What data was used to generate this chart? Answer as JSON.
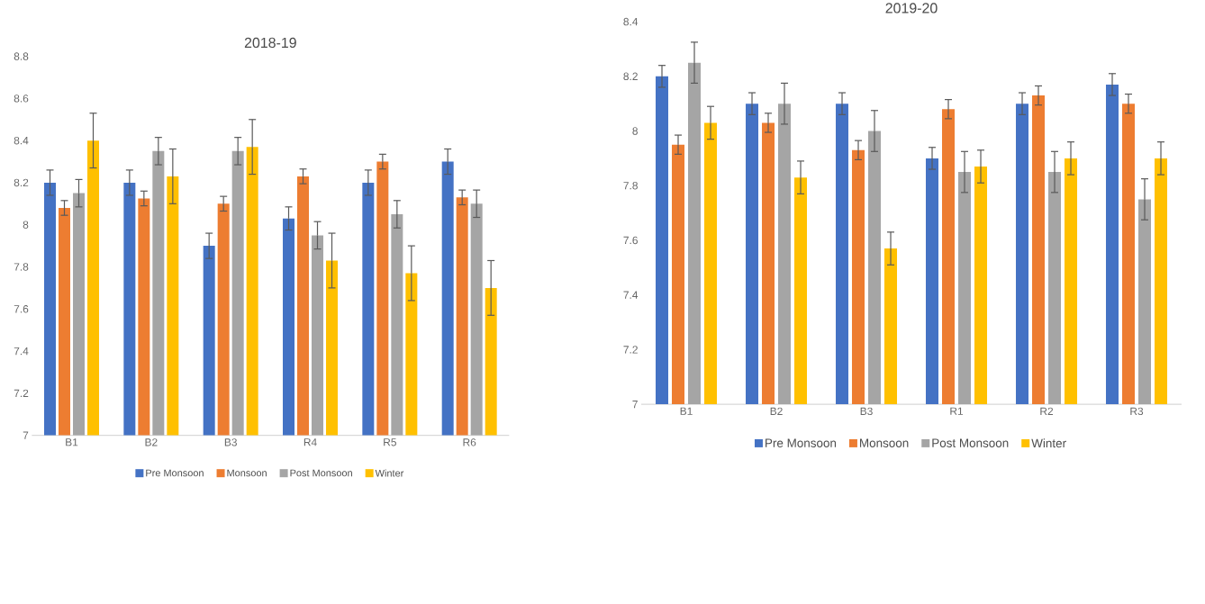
{
  "chart_data": [
    {
      "type": "bar",
      "title": "2018-19",
      "categories": [
        "B1",
        "B2",
        "B3",
        "R4",
        "R5",
        "R6"
      ],
      "ylim": [
        7,
        8.8
      ],
      "yticks": [
        7,
        7.2,
        7.4,
        7.6,
        7.8,
        8,
        8.2,
        8.4,
        8.6,
        8.8
      ],
      "legend": "bottom",
      "series": [
        {
          "name": "Pre Monsoon",
          "color": "#4472c4",
          "values": [
            8.2,
            8.2,
            7.9,
            8.03,
            8.2,
            8.3
          ],
          "errors": [
            0.06,
            0.06,
            0.06,
            0.055,
            0.06,
            0.06
          ]
        },
        {
          "name": "Monsoon",
          "color": "#ed7d31",
          "values": [
            8.08,
            8.125,
            8.1,
            8.23,
            8.3,
            8.13
          ],
          "errors": [
            0.035,
            0.035,
            0.035,
            0.035,
            0.035,
            0.035
          ]
        },
        {
          "name": "Post Monsoon",
          "color": "#a5a5a5",
          "values": [
            8.15,
            8.35,
            8.35,
            7.95,
            8.05,
            8.1
          ],
          "errors": [
            0.065,
            0.065,
            0.065,
            0.065,
            0.065,
            0.065
          ]
        },
        {
          "name": "Winter",
          "color": "#ffc000",
          "values": [
            8.4,
            8.23,
            8.37,
            7.83,
            7.77,
            7.7
          ],
          "errors": [
            0.13,
            0.13,
            0.13,
            0.13,
            0.13,
            0.13
          ]
        }
      ]
    },
    {
      "type": "bar",
      "title": "2019-20",
      "categories": [
        "B1",
        "B2",
        "B3",
        "R1",
        "R2",
        "R3"
      ],
      "ylim": [
        7,
        8.4
      ],
      "yticks": [
        7,
        7.2,
        7.4,
        7.6,
        7.8,
        8,
        8.2,
        8.4
      ],
      "legend": "bottom",
      "series": [
        {
          "name": "Pre Monsoon",
          "color": "#4472c4",
          "values": [
            8.2,
            8.1,
            8.1,
            7.9,
            8.1,
            8.17
          ],
          "errors": [
            0.04,
            0.04,
            0.04,
            0.04,
            0.04,
            0.04
          ]
        },
        {
          "name": "Monsoon",
          "color": "#ed7d31",
          "values": [
            7.95,
            8.03,
            7.93,
            8.08,
            8.13,
            8.1
          ],
          "errors": [
            0.035,
            0.035,
            0.035,
            0.035,
            0.035,
            0.035
          ]
        },
        {
          "name": "Post Monsoon",
          "color": "#a5a5a5",
          "values": [
            8.25,
            8.1,
            8.0,
            7.85,
            7.85,
            7.75
          ],
          "errors": [
            0.075,
            0.075,
            0.075,
            0.075,
            0.075,
            0.075
          ]
        },
        {
          "name": "Winter",
          "color": "#ffc000",
          "values": [
            8.03,
            7.83,
            7.57,
            7.87,
            7.9,
            7.9
          ],
          "errors": [
            0.06,
            0.06,
            0.06,
            0.06,
            0.06,
            0.06
          ]
        }
      ]
    }
  ]
}
